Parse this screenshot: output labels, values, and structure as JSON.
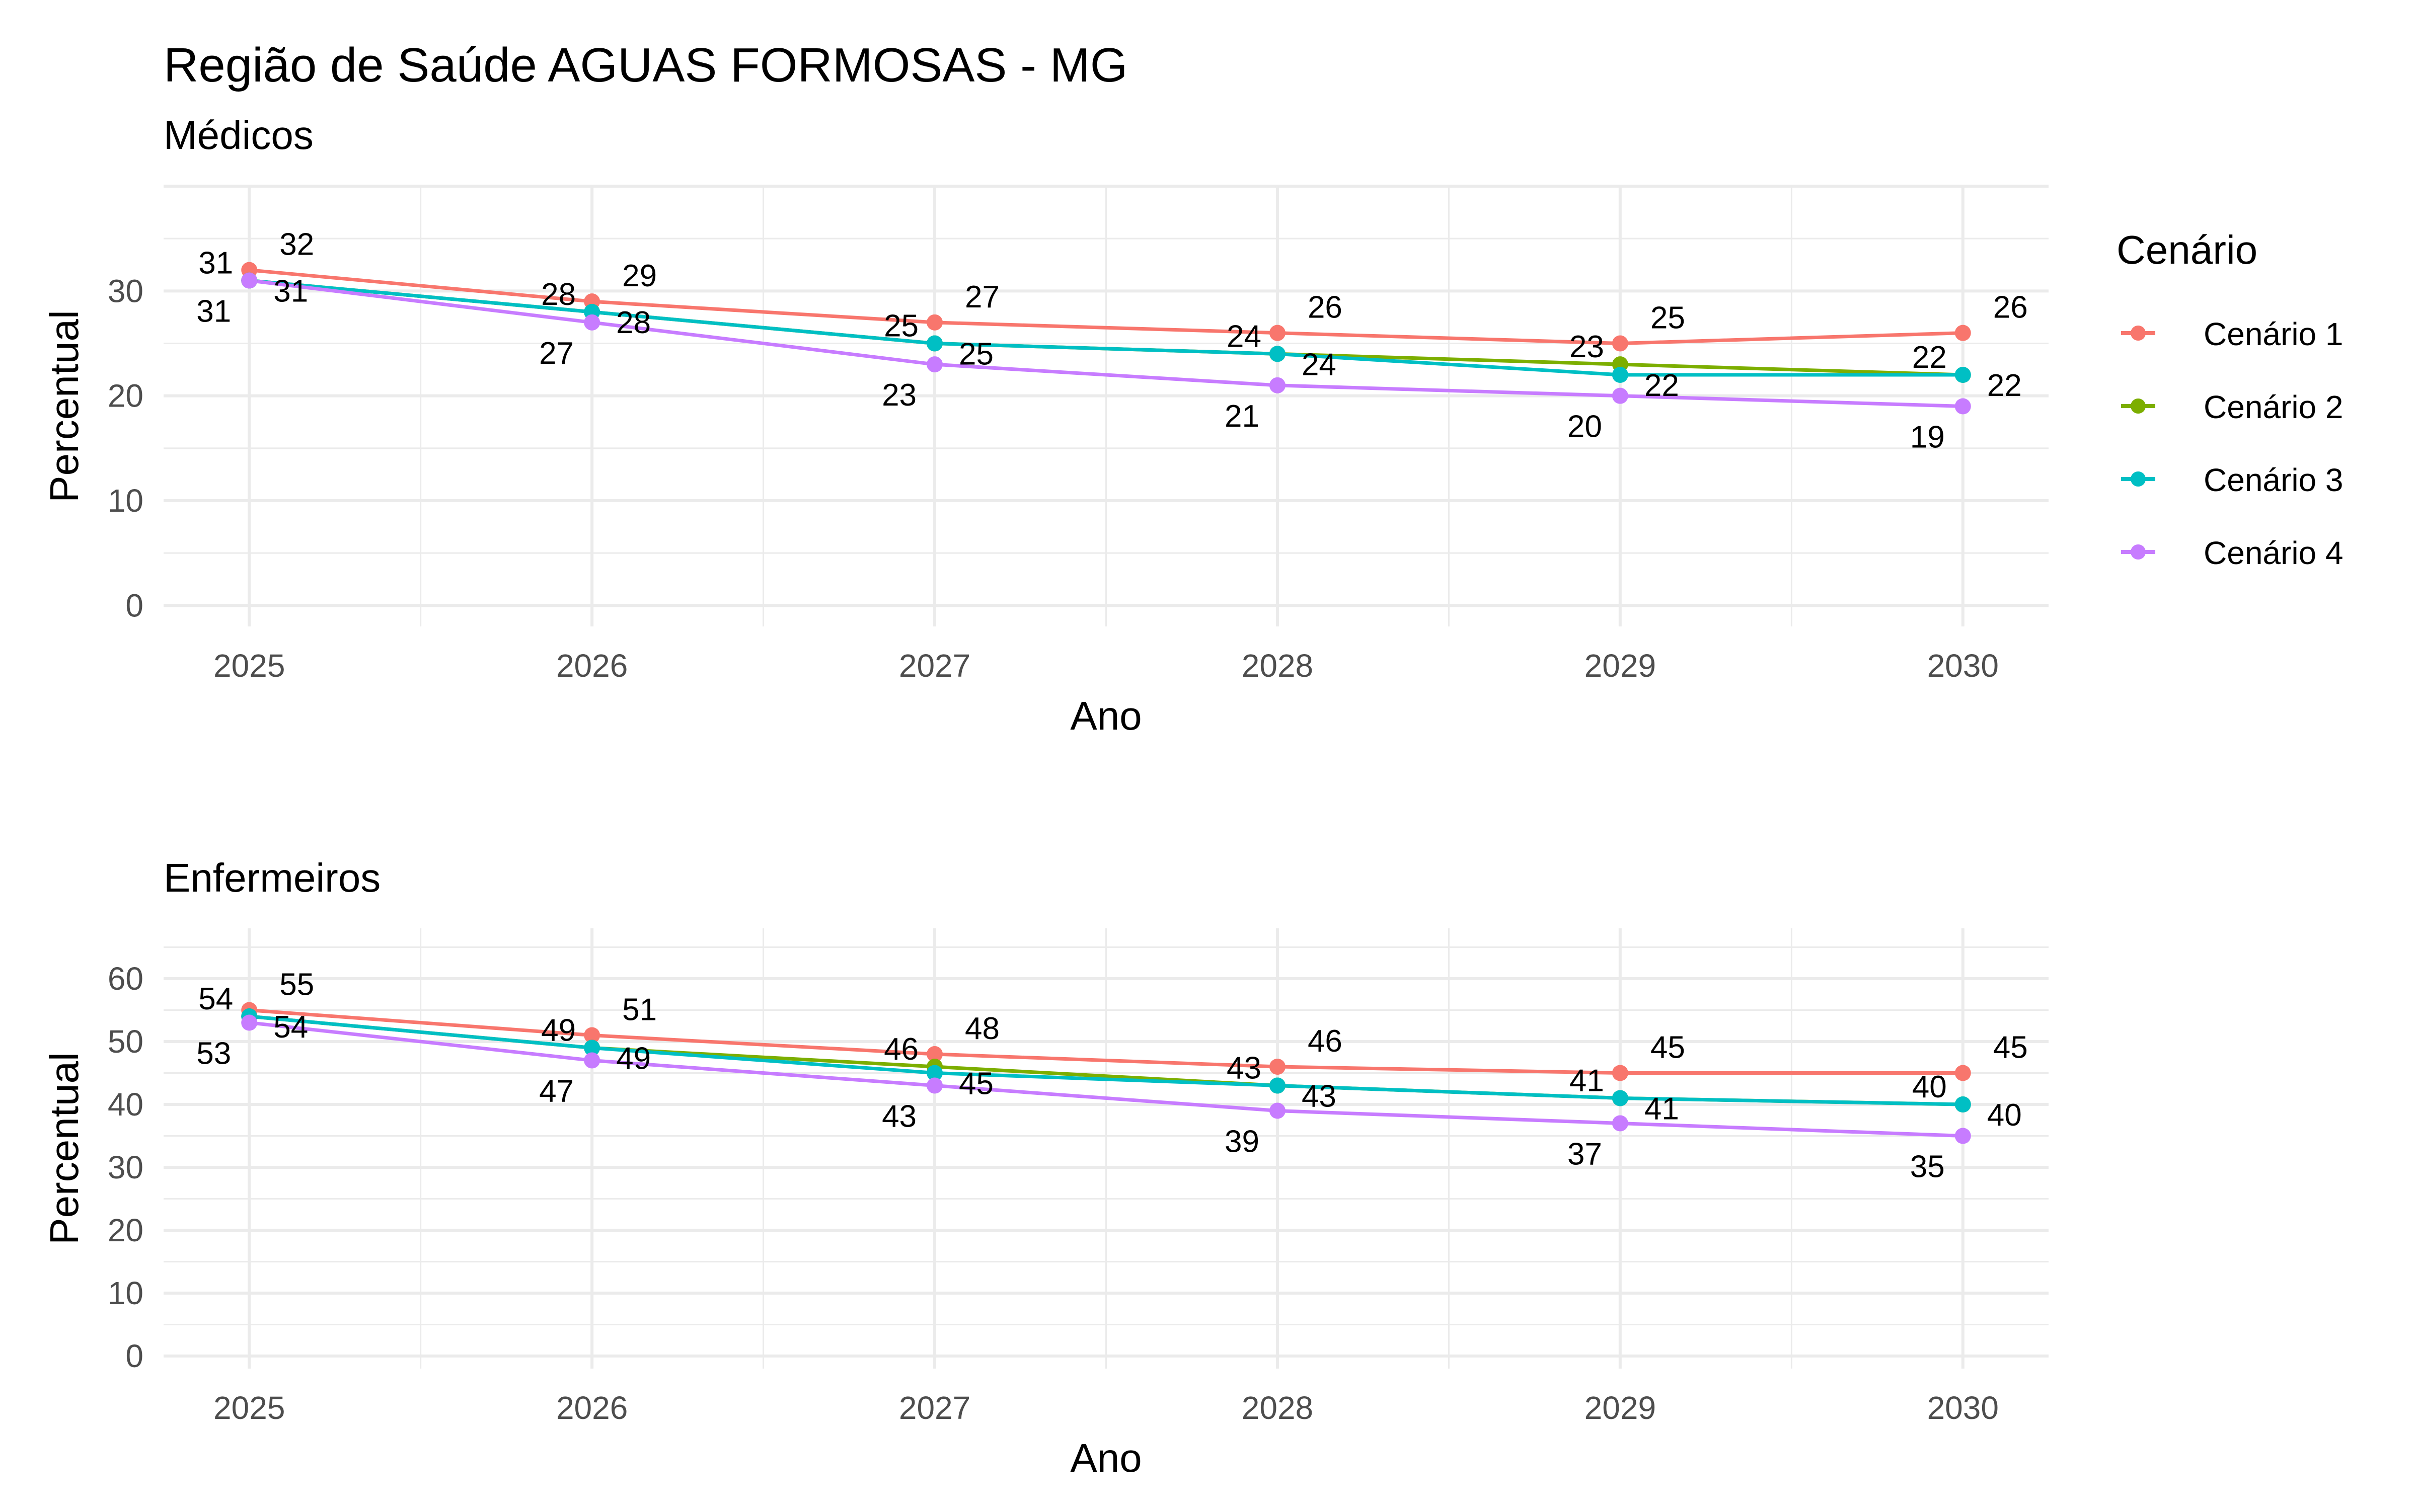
{
  "title": "Região de Saúde AGUAS FORMOSAS - MG",
  "legend": {
    "title": "Cenário",
    "placement": "right",
    "items": [
      {
        "label": "Cenário 1",
        "color": "#F8766D"
      },
      {
        "label": "Cenário 2",
        "color": "#7CAE00"
      },
      {
        "label": "Cenário 3",
        "color": "#00BFC4"
      },
      {
        "label": "Cenário 4",
        "color": "#C77CFF"
      }
    ]
  },
  "chart_data": [
    {
      "type": "line",
      "title": "Médicos",
      "xlabel": "Ano",
      "ylabel": "Percentual",
      "x": [
        2025,
        2026,
        2027,
        2028,
        2029,
        2030
      ],
      "x_ticks": [
        "2025",
        "2026",
        "2027",
        "2028",
        "2029",
        "2030"
      ],
      "y_ticks": [
        "0",
        "10",
        "20",
        "30"
      ],
      "xlim": [
        2024.75,
        2030.25
      ],
      "ylim": [
        -2,
        40
      ],
      "grid": true,
      "series": [
        {
          "name": "Cenário 1",
          "color": "#F8766D",
          "values": [
            32,
            29,
            27,
            26,
            25,
            26
          ]
        },
        {
          "name": "Cenário 2",
          "color": "#7CAE00",
          "values": [
            31,
            28,
            25,
            24,
            23,
            22
          ]
        },
        {
          "name": "Cenário 3",
          "color": "#00BFC4",
          "values": [
            31,
            28,
            25,
            24,
            22,
            22
          ]
        },
        {
          "name": "Cenário 4",
          "color": "#C77CFF",
          "values": [
            31,
            27,
            23,
            21,
            20,
            19
          ]
        }
      ]
    },
    {
      "type": "line",
      "title": "Enfermeiros",
      "xlabel": "Ano",
      "ylabel": "Percentual",
      "x": [
        2025,
        2026,
        2027,
        2028,
        2029,
        2030
      ],
      "x_ticks": [
        "2025",
        "2026",
        "2027",
        "2028",
        "2029",
        "2030"
      ],
      "y_ticks": [
        "0",
        "10",
        "20",
        "30",
        "40",
        "50",
        "60"
      ],
      "xlim": [
        2024.75,
        2030.25
      ],
      "ylim": [
        -2,
        68
      ],
      "grid": true,
      "series": [
        {
          "name": "Cenário 1",
          "color": "#F8766D",
          "values": [
            55,
            51,
            48,
            46,
            45,
            45
          ]
        },
        {
          "name": "Cenário 2",
          "color": "#7CAE00",
          "values": [
            54,
            49,
            46,
            43,
            41,
            40
          ]
        },
        {
          "name": "Cenário 3",
          "color": "#00BFC4",
          "values": [
            54,
            49,
            45,
            43,
            41,
            40
          ]
        },
        {
          "name": "Cenário 4",
          "color": "#C77CFF",
          "values": [
            53,
            47,
            43,
            39,
            37,
            35
          ]
        }
      ]
    }
  ]
}
